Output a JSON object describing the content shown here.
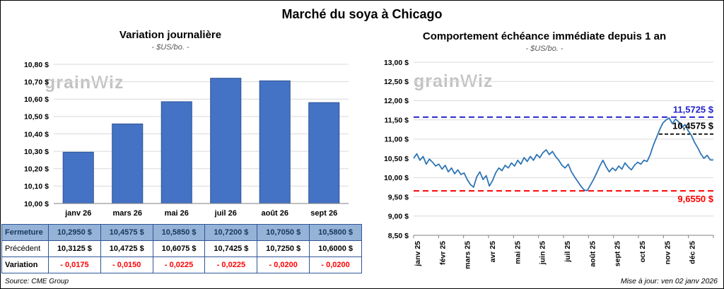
{
  "header": {
    "title": "Marché du soya à Chicago"
  },
  "watermark": {
    "pre": "grain",
    "mid": "w",
    "post": "iz"
  },
  "footer": {
    "source": "Source: CME Group",
    "updated": "Mise à jour: ven 02 janv 2026"
  },
  "chart_data": [
    {
      "type": "bar",
      "title": "Variation journalière",
      "subtitle": "- $US/bo. -",
      "categories": [
        "janv 26",
        "mars 26",
        "mai 26",
        "juil 26",
        "août 26",
        "sept 26"
      ],
      "values": [
        10.295,
        10.4575,
        10.585,
        10.72,
        10.705,
        10.58
      ],
      "ylim": [
        10.0,
        10.8
      ],
      "y_step": 0.1,
      "y_tick_labels": [
        "10,80 $",
        "10,70 $",
        "10,60 $",
        "10,50 $",
        "10,40 $",
        "10,30 $",
        "10,20 $",
        "10,10 $",
        "10,00 $"
      ],
      "grid": true,
      "bar_color": "#4472C4",
      "bar_border": "#2F5597"
    },
    {
      "type": "line",
      "title": "Comportement échéance immédiate depuis 1 an",
      "subtitle": "- $US/bo. -",
      "x_labels": [
        "janv 25",
        "févr 25",
        "mars 25",
        "avr 25",
        "mai 25",
        "juin 25",
        "juil 25",
        "août 25",
        "sept 25",
        "oct 25",
        "nov 25",
        "déc 25"
      ],
      "ylim": [
        8.5,
        13.0
      ],
      "y_step": 0.5,
      "y_tick_labels": [
        "13,00 $",
        "12,50 $",
        "12,00 $",
        "11,50 $",
        "11,00 $",
        "10,50 $",
        "10,00 $",
        "9,50 $",
        "9,00 $",
        "8,50 $"
      ],
      "grid": true,
      "line_color": "#2E75B6",
      "annotations": {
        "high": {
          "value": 11.5725,
          "label": "11,5725 $",
          "color": "#2222CC"
        },
        "last": {
          "value": 10.4575,
          "label": "10,4575 $",
          "color": "#000000"
        },
        "low": {
          "value": 9.655,
          "label": "9,6550 $",
          "color": "#FF0000"
        }
      },
      "values": [
        10.5,
        10.62,
        10.45,
        10.55,
        10.35,
        10.48,
        10.4,
        10.3,
        10.35,
        10.22,
        10.32,
        10.15,
        10.25,
        10.1,
        10.2,
        10.08,
        10.12,
        9.95,
        9.82,
        9.75,
        10.02,
        10.15,
        9.95,
        10.05,
        9.78,
        9.92,
        10.12,
        10.25,
        10.18,
        10.32,
        10.25,
        10.38,
        10.3,
        10.45,
        10.35,
        10.52,
        10.42,
        10.55,
        10.45,
        10.6,
        10.52,
        10.65,
        10.72,
        10.6,
        10.68,
        10.55,
        10.45,
        10.32,
        10.25,
        10.35,
        10.15,
        10.02,
        9.9,
        9.78,
        9.68,
        9.66,
        9.8,
        9.95,
        10.12,
        10.3,
        10.45,
        10.28,
        10.15,
        10.25,
        10.18,
        10.3,
        10.22,
        10.38,
        10.28,
        10.2,
        10.32,
        10.4,
        10.35,
        10.45,
        10.42,
        10.6,
        10.85,
        11.05,
        11.25,
        11.42,
        11.5,
        11.55,
        11.4,
        11.52,
        11.45,
        11.3,
        11.38,
        11.22,
        11.1,
        10.92,
        10.78,
        10.62,
        10.5,
        10.58,
        10.46,
        10.4575
      ]
    }
  ],
  "table": {
    "rows": [
      {
        "label": "Fermeture",
        "values": [
          "10,2950 $",
          "10,4575 $",
          "10,5850 $",
          "10,7200 $",
          "10,7050 $",
          "10,5800 $"
        ]
      },
      {
        "label": "Précédent",
        "values": [
          "10,3125 $",
          "10,4725 $",
          "10,6075 $",
          "10,7425 $",
          "10,7250 $",
          "10,6000 $"
        ]
      },
      {
        "label": "Variation",
        "values": [
          "- 0,0175",
          "- 0,0150",
          "- 0,0225",
          "- 0,0225",
          "- 0,0200",
          "- 0,0200"
        ]
      }
    ]
  }
}
